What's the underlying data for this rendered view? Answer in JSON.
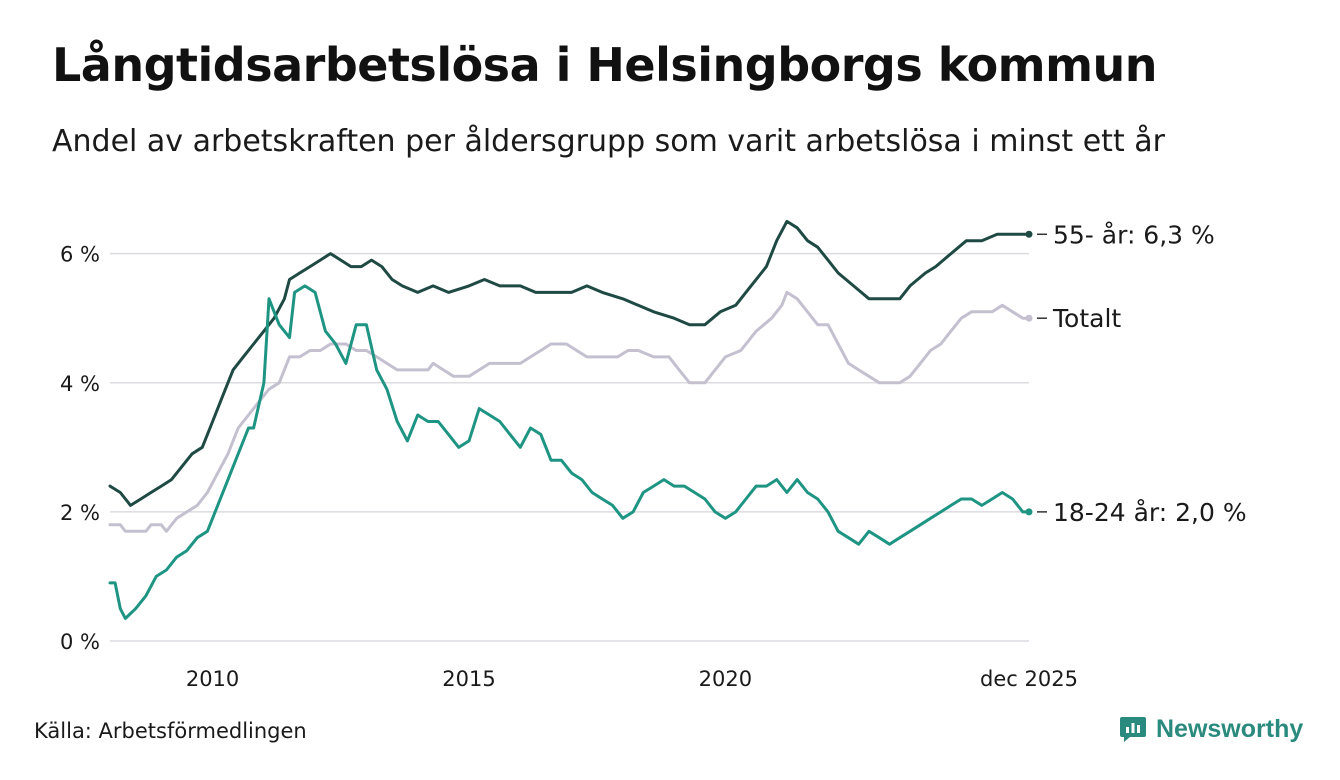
{
  "title": "Långtidsarbetslösa i Helsingborgs kommun",
  "subtitle": "Andel av arbetskraften per åldersgrupp som varit arbetslösa i minst ett år",
  "source": "Källa: Arbetsförmedlingen",
  "brand": {
    "name": "Newsworthy",
    "color": "#2a8a7e",
    "icon": "newsworthy-logo-icon"
  },
  "chart_data": {
    "type": "line",
    "x_range": [
      2008.0,
      2025.92
    ],
    "ylim": [
      0,
      6.8
    ],
    "grid": true,
    "y_ticks": [
      {
        "value": 0,
        "label": "0 %"
      },
      {
        "value": 2,
        "label": "2 %"
      },
      {
        "value": 4,
        "label": "4 %"
      },
      {
        "value": 6,
        "label": "6 %"
      }
    ],
    "x_ticks": [
      {
        "value": 2010,
        "label": "2010"
      },
      {
        "value": 2015,
        "label": "2015"
      },
      {
        "value": 2020,
        "label": "2020"
      },
      {
        "value": 2025.92,
        "label": "dec 2025"
      }
    ],
    "series": [
      {
        "name": "Totalt",
        "label": "Totalt",
        "color": "#c4c0cf",
        "points": [
          [
            2008.0,
            1.8
          ],
          [
            2008.2,
            1.8
          ],
          [
            2008.3,
            1.7
          ],
          [
            2008.7,
            1.7
          ],
          [
            2008.8,
            1.8
          ],
          [
            2009.0,
            1.8
          ],
          [
            2009.1,
            1.7
          ],
          [
            2009.3,
            1.9
          ],
          [
            2009.5,
            2.0
          ],
          [
            2009.7,
            2.1
          ],
          [
            2009.9,
            2.3
          ],
          [
            2010.1,
            2.6
          ],
          [
            2010.3,
            2.9
          ],
          [
            2010.5,
            3.3
          ],
          [
            2010.7,
            3.5
          ],
          [
            2010.9,
            3.7
          ],
          [
            2011.1,
            3.9
          ],
          [
            2011.3,
            4.0
          ],
          [
            2011.5,
            4.4
          ],
          [
            2011.7,
            4.4
          ],
          [
            2011.9,
            4.5
          ],
          [
            2012.1,
            4.5
          ],
          [
            2012.3,
            4.6
          ],
          [
            2012.6,
            4.6
          ],
          [
            2012.8,
            4.5
          ],
          [
            2013.0,
            4.5
          ],
          [
            2013.2,
            4.4
          ],
          [
            2013.4,
            4.3
          ],
          [
            2013.6,
            4.2
          ],
          [
            2013.8,
            4.2
          ],
          [
            2014.0,
            4.2
          ],
          [
            2014.2,
            4.2
          ],
          [
            2014.3,
            4.3
          ],
          [
            2014.5,
            4.2
          ],
          [
            2014.7,
            4.1
          ],
          [
            2015.0,
            4.1
          ],
          [
            2015.2,
            4.2
          ],
          [
            2015.4,
            4.3
          ],
          [
            2015.6,
            4.3
          ],
          [
            2016.0,
            4.3
          ],
          [
            2016.2,
            4.4
          ],
          [
            2016.4,
            4.5
          ],
          [
            2016.6,
            4.6
          ],
          [
            2016.9,
            4.6
          ],
          [
            2017.1,
            4.5
          ],
          [
            2017.3,
            4.4
          ],
          [
            2017.6,
            4.4
          ],
          [
            2017.9,
            4.4
          ],
          [
            2018.1,
            4.5
          ],
          [
            2018.3,
            4.5
          ],
          [
            2018.6,
            4.4
          ],
          [
            2018.9,
            4.4
          ],
          [
            2019.1,
            4.2
          ],
          [
            2019.3,
            4.0
          ],
          [
            2019.6,
            4.0
          ],
          [
            2019.8,
            4.2
          ],
          [
            2020.0,
            4.4
          ],
          [
            2020.3,
            4.5
          ],
          [
            2020.6,
            4.8
          ],
          [
            2020.9,
            5.0
          ],
          [
            2021.1,
            5.2
          ],
          [
            2021.2,
            5.4
          ],
          [
            2021.4,
            5.3
          ],
          [
            2021.6,
            5.1
          ],
          [
            2021.8,
            4.9
          ],
          [
            2022.0,
            4.9
          ],
          [
            2022.2,
            4.6
          ],
          [
            2022.4,
            4.3
          ],
          [
            2022.6,
            4.2
          ],
          [
            2022.8,
            4.1
          ],
          [
            2023.0,
            4.0
          ],
          [
            2023.2,
            4.0
          ],
          [
            2023.4,
            4.0
          ],
          [
            2023.6,
            4.1
          ],
          [
            2023.8,
            4.3
          ],
          [
            2024.0,
            4.5
          ],
          [
            2024.2,
            4.6
          ],
          [
            2024.4,
            4.8
          ],
          [
            2024.6,
            5.0
          ],
          [
            2024.8,
            5.1
          ],
          [
            2025.0,
            5.1
          ],
          [
            2025.2,
            5.1
          ],
          [
            2025.4,
            5.2
          ],
          [
            2025.6,
            5.1
          ],
          [
            2025.8,
            5.0
          ],
          [
            2025.92,
            5.0
          ]
        ]
      },
      {
        "name": "55- år",
        "label": "55- år: 6,3 %",
        "color": "#1f4a43",
        "points": [
          [
            2008.0,
            2.4
          ],
          [
            2008.2,
            2.3
          ],
          [
            2008.4,
            2.1
          ],
          [
            2008.6,
            2.2
          ],
          [
            2008.8,
            2.3
          ],
          [
            2009.0,
            2.4
          ],
          [
            2009.2,
            2.5
          ],
          [
            2009.4,
            2.7
          ],
          [
            2009.6,
            2.9
          ],
          [
            2009.8,
            3.0
          ],
          [
            2010.0,
            3.4
          ],
          [
            2010.2,
            3.8
          ],
          [
            2010.4,
            4.2
          ],
          [
            2010.6,
            4.4
          ],
          [
            2010.8,
            4.6
          ],
          [
            2011.0,
            4.8
          ],
          [
            2011.2,
            5.0
          ],
          [
            2011.4,
            5.3
          ],
          [
            2011.5,
            5.6
          ],
          [
            2011.7,
            5.7
          ],
          [
            2011.9,
            5.8
          ],
          [
            2012.1,
            5.9
          ],
          [
            2012.3,
            6.0
          ],
          [
            2012.5,
            5.9
          ],
          [
            2012.7,
            5.8
          ],
          [
            2012.9,
            5.8
          ],
          [
            2013.1,
            5.9
          ],
          [
            2013.3,
            5.8
          ],
          [
            2013.5,
            5.6
          ],
          [
            2013.7,
            5.5
          ],
          [
            2014.0,
            5.4
          ],
          [
            2014.3,
            5.5
          ],
          [
            2014.6,
            5.4
          ],
          [
            2015.0,
            5.5
          ],
          [
            2015.3,
            5.6
          ],
          [
            2015.6,
            5.5
          ],
          [
            2016.0,
            5.5
          ],
          [
            2016.3,
            5.4
          ],
          [
            2016.6,
            5.4
          ],
          [
            2017.0,
            5.4
          ],
          [
            2017.3,
            5.5
          ],
          [
            2017.6,
            5.4
          ],
          [
            2018.0,
            5.3
          ],
          [
            2018.3,
            5.2
          ],
          [
            2018.6,
            5.1
          ],
          [
            2019.0,
            5.0
          ],
          [
            2019.3,
            4.9
          ],
          [
            2019.6,
            4.9
          ],
          [
            2019.9,
            5.1
          ],
          [
            2020.2,
            5.2
          ],
          [
            2020.5,
            5.5
          ],
          [
            2020.8,
            5.8
          ],
          [
            2021.0,
            6.2
          ],
          [
            2021.2,
            6.5
          ],
          [
            2021.4,
            6.4
          ],
          [
            2021.6,
            6.2
          ],
          [
            2021.8,
            6.1
          ],
          [
            2022.0,
            5.9
          ],
          [
            2022.2,
            5.7
          ],
          [
            2022.5,
            5.5
          ],
          [
            2022.8,
            5.3
          ],
          [
            2023.1,
            5.3
          ],
          [
            2023.4,
            5.3
          ],
          [
            2023.6,
            5.5
          ],
          [
            2023.9,
            5.7
          ],
          [
            2024.1,
            5.8
          ],
          [
            2024.4,
            6.0
          ],
          [
            2024.7,
            6.2
          ],
          [
            2025.0,
            6.2
          ],
          [
            2025.3,
            6.3
          ],
          [
            2025.6,
            6.3
          ],
          [
            2025.8,
            6.3
          ],
          [
            2025.92,
            6.3
          ]
        ]
      },
      {
        "name": "18-24 år",
        "label": "18-24 år: 2,0 %",
        "color": "#1e9483",
        "points": [
          [
            2008.0,
            0.9
          ],
          [
            2008.1,
            0.9
          ],
          [
            2008.2,
            0.5
          ],
          [
            2008.3,
            0.35
          ],
          [
            2008.5,
            0.5
          ],
          [
            2008.7,
            0.7
          ],
          [
            2008.9,
            1.0
          ],
          [
            2009.1,
            1.1
          ],
          [
            2009.3,
            1.3
          ],
          [
            2009.5,
            1.4
          ],
          [
            2009.7,
            1.6
          ],
          [
            2009.9,
            1.7
          ],
          [
            2010.1,
            2.1
          ],
          [
            2010.3,
            2.5
          ],
          [
            2010.5,
            2.9
          ],
          [
            2010.7,
            3.3
          ],
          [
            2010.8,
            3.3
          ],
          [
            2011.0,
            4.0
          ],
          [
            2011.1,
            5.3
          ],
          [
            2011.3,
            4.9
          ],
          [
            2011.5,
            4.7
          ],
          [
            2011.6,
            5.4
          ],
          [
            2011.8,
            5.5
          ],
          [
            2012.0,
            5.4
          ],
          [
            2012.2,
            4.8
          ],
          [
            2012.4,
            4.6
          ],
          [
            2012.6,
            4.3
          ],
          [
            2012.8,
            4.9
          ],
          [
            2013.0,
            4.9
          ],
          [
            2013.2,
            4.2
          ],
          [
            2013.4,
            3.9
          ],
          [
            2013.6,
            3.4
          ],
          [
            2013.8,
            3.1
          ],
          [
            2014.0,
            3.5
          ],
          [
            2014.2,
            3.4
          ],
          [
            2014.4,
            3.4
          ],
          [
            2014.6,
            3.2
          ],
          [
            2014.8,
            3.0
          ],
          [
            2015.0,
            3.1
          ],
          [
            2015.2,
            3.6
          ],
          [
            2015.4,
            3.5
          ],
          [
            2015.6,
            3.4
          ],
          [
            2015.8,
            3.2
          ],
          [
            2016.0,
            3.0
          ],
          [
            2016.2,
            3.3
          ],
          [
            2016.4,
            3.2
          ],
          [
            2016.6,
            2.8
          ],
          [
            2016.8,
            2.8
          ],
          [
            2017.0,
            2.6
          ],
          [
            2017.2,
            2.5
          ],
          [
            2017.4,
            2.3
          ],
          [
            2017.6,
            2.2
          ],
          [
            2017.8,
            2.1
          ],
          [
            2018.0,
            1.9
          ],
          [
            2018.2,
            2.0
          ],
          [
            2018.4,
            2.3
          ],
          [
            2018.6,
            2.4
          ],
          [
            2018.8,
            2.5
          ],
          [
            2019.0,
            2.4
          ],
          [
            2019.2,
            2.4
          ],
          [
            2019.4,
            2.3
          ],
          [
            2019.6,
            2.2
          ],
          [
            2019.8,
            2.0
          ],
          [
            2020.0,
            1.9
          ],
          [
            2020.2,
            2.0
          ],
          [
            2020.4,
            2.2
          ],
          [
            2020.6,
            2.4
          ],
          [
            2020.8,
            2.4
          ],
          [
            2021.0,
            2.5
          ],
          [
            2021.2,
            2.3
          ],
          [
            2021.4,
            2.5
          ],
          [
            2021.6,
            2.3
          ],
          [
            2021.8,
            2.2
          ],
          [
            2022.0,
            2.0
          ],
          [
            2022.2,
            1.7
          ],
          [
            2022.4,
            1.6
          ],
          [
            2022.6,
            1.5
          ],
          [
            2022.8,
            1.7
          ],
          [
            2023.0,
            1.6
          ],
          [
            2023.2,
            1.5
          ],
          [
            2023.4,
            1.6
          ],
          [
            2023.6,
            1.7
          ],
          [
            2023.8,
            1.8
          ],
          [
            2024.0,
            1.9
          ],
          [
            2024.2,
            2.0
          ],
          [
            2024.4,
            2.1
          ],
          [
            2024.6,
            2.2
          ],
          [
            2024.8,
            2.2
          ],
          [
            2025.0,
            2.1
          ],
          [
            2025.2,
            2.2
          ],
          [
            2025.4,
            2.3
          ],
          [
            2025.6,
            2.2
          ],
          [
            2025.8,
            2.0
          ],
          [
            2025.92,
            2.0
          ]
        ]
      }
    ]
  }
}
